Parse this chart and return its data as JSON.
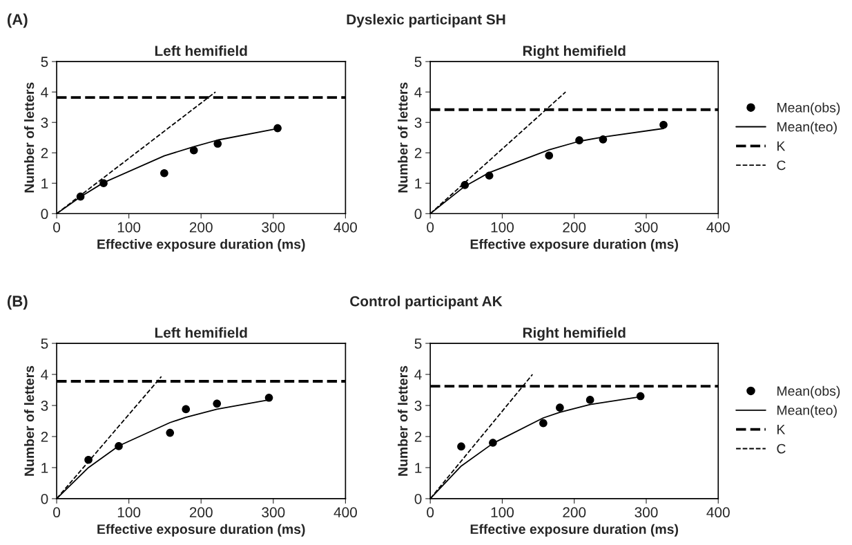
{
  "chart_data": [
    {
      "type": "line",
      "title": "Left hemifield",
      "xlabel": "Effective exposure duration (ms)",
      "ylabel": "Number of letters",
      "annotations": [
        "(A)",
        "Dyslexic participant SH"
      ],
      "xlim": [
        0,
        400
      ],
      "xticks": [
        0,
        100,
        200,
        300,
        400
      ],
      "ylim": [
        0,
        5
      ],
      "yticks": [
        0,
        1,
        2,
        3,
        4,
        5
      ],
      "grid": false,
      "legend": false,
      "series": [
        {
          "type": "scatter",
          "marker": "circle",
          "color": "#000000",
          "x": [
            33,
            65,
            149,
            190,
            223,
            306
          ],
          "values": [
            0.56,
            1.0,
            1.33,
            2.08,
            2.3,
            2.81
          ]
        },
        {
          "line_style": "solid",
          "color": "#000000",
          "x": [
            0,
            33,
            65,
            149,
            190,
            223,
            306
          ],
          "values": [
            0,
            0.55,
            1.02,
            1.9,
            2.2,
            2.42,
            2.8
          ]
        },
        {
          "line_style": "dashed",
          "color": "#000000",
          "x": [
            0,
            400
          ],
          "values": [
            3.82,
            3.82
          ]
        },
        {
          "line_style": "dashed",
          "color": "#000000",
          "x": [
            0,
            220
          ],
          "values": [
            0,
            4.0
          ]
        }
      ]
    },
    {
      "type": "line",
      "title": "Right hemifield",
      "xlabel": "Effective exposure duration (ms)",
      "ylabel": "Number of letters",
      "xlim": [
        0,
        400
      ],
      "xticks": [
        0,
        100,
        200,
        300,
        400
      ],
      "ylim": [
        0,
        5
      ],
      "yticks": [
        0,
        1,
        2,
        3,
        4,
        5
      ],
      "grid": false,
      "legend": "right",
      "series": [
        {
          "type": "scatter",
          "name": "Mean(obs)",
          "marker": "circle",
          "color": "#000000",
          "x": [
            48,
            82,
            165,
            207,
            240,
            324
          ],
          "values": [
            0.94,
            1.25,
            1.91,
            2.41,
            2.44,
            2.92
          ]
        },
        {
          "name": "Mean(teo)",
          "line_style": "solid",
          "color": "#000000",
          "x": [
            0,
            48,
            82,
            165,
            207,
            240,
            324
          ],
          "values": [
            0,
            0.9,
            1.35,
            2.1,
            2.38,
            2.52,
            2.8
          ]
        },
        {
          "name": "K",
          "line_style": "dashed",
          "color": "#000000",
          "x": [
            0,
            400
          ],
          "values": [
            3.42,
            3.42
          ]
        },
        {
          "name": "C",
          "line_style": "dashed",
          "color": "#000000",
          "x": [
            0,
            188
          ],
          "values": [
            0,
            4.0
          ]
        }
      ]
    },
    {
      "type": "line",
      "title": "Left hemifield",
      "xlabel": "Effective exposure duration (ms)",
      "ylabel": "Number of letters",
      "annotations": [
        "(B)",
        "Control participant AK"
      ],
      "xlim": [
        0,
        400
      ],
      "xticks": [
        0,
        100,
        200,
        300,
        400
      ],
      "ylim": [
        0,
        5
      ],
      "yticks": [
        0,
        1,
        2,
        3,
        4,
        5
      ],
      "grid": false,
      "legend": false,
      "series": [
        {
          "type": "scatter",
          "marker": "circle",
          "color": "#000000",
          "x": [
            44,
            86,
            157,
            179,
            222,
            294
          ],
          "values": [
            1.25,
            1.69,
            2.12,
            2.88,
            3.06,
            3.25
          ]
        },
        {
          "line_style": "solid",
          "color": "#000000",
          "x": [
            0,
            44,
            86,
            157,
            179,
            222,
            294
          ],
          "values": [
            0,
            1.0,
            1.7,
            2.45,
            2.62,
            2.88,
            3.18
          ]
        },
        {
          "line_style": "dashed",
          "color": "#000000",
          "x": [
            0,
            400
          ],
          "values": [
            3.78,
            3.78
          ]
        },
        {
          "line_style": "dashed",
          "color": "#000000",
          "x": [
            0,
            145
          ],
          "values": [
            0,
            3.93
          ]
        }
      ]
    },
    {
      "type": "line",
      "title": "Right hemifield",
      "xlabel": "Effective exposure duration (ms)",
      "ylabel": "Number of letters",
      "xlim": [
        0,
        400
      ],
      "xticks": [
        0,
        100,
        200,
        300,
        400
      ],
      "ylim": [
        0,
        5
      ],
      "yticks": [
        0,
        1,
        2,
        3,
        4,
        5
      ],
      "grid": false,
      "legend": "right",
      "series": [
        {
          "type": "scatter",
          "name": "Mean(obs)",
          "marker": "circle",
          "color": "#000000",
          "x": [
            43,
            87,
            157,
            180,
            222,
            292
          ],
          "values": [
            1.68,
            1.8,
            2.43,
            2.93,
            3.18,
            3.3
          ]
        },
        {
          "name": "Mean(teo)",
          "line_style": "solid",
          "color": "#000000",
          "x": [
            0,
            43,
            87,
            157,
            180,
            222,
            292
          ],
          "values": [
            0,
            1.05,
            1.78,
            2.6,
            2.78,
            3.03,
            3.28
          ]
        },
        {
          "name": "K",
          "line_style": "dashed",
          "color": "#000000",
          "x": [
            0,
            400
          ],
          "values": [
            3.62,
            3.62
          ]
        },
        {
          "name": "C",
          "line_style": "dashed",
          "color": "#000000",
          "x": [
            0,
            142
          ],
          "values": [
            0,
            4.0
          ]
        }
      ]
    }
  ]
}
